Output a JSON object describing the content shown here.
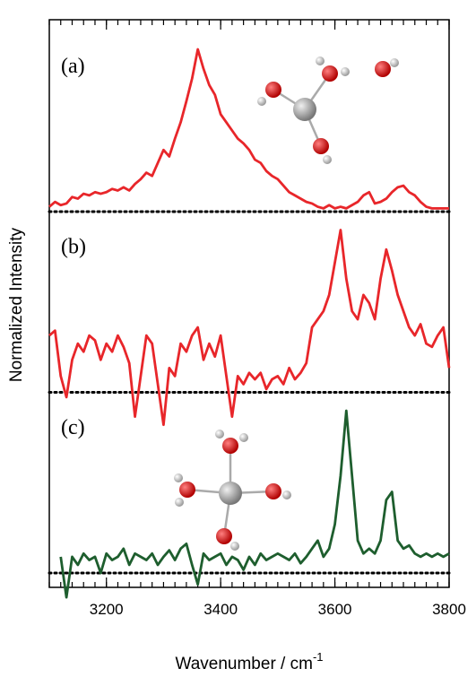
{
  "chart_data": {
    "type": "line",
    "xlabel": "Wavenumber  /  cm",
    "xlabel_sup": "-1",
    "ylabel": "Normalized Intensity",
    "xlim": [
      3100,
      3800
    ],
    "xticks": [
      3200,
      3400,
      3600,
      3800
    ],
    "xminorticks": [
      3100,
      3120,
      3140,
      3160,
      3180,
      3200,
      3220,
      3240,
      3260,
      3280,
      3300,
      3320,
      3340,
      3360,
      3380,
      3400,
      3420,
      3440,
      3460,
      3480,
      3500,
      3520,
      3540,
      3560,
      3580,
      3600,
      3620,
      3640,
      3660,
      3680,
      3700,
      3720,
      3740,
      3760,
      3780,
      3800
    ],
    "x": [
      3100,
      3110,
      3120,
      3130,
      3140,
      3150,
      3160,
      3170,
      3180,
      3190,
      3200,
      3210,
      3220,
      3230,
      3240,
      3250,
      3260,
      3270,
      3280,
      3290,
      3300,
      3310,
      3320,
      3330,
      3340,
      3350,
      3360,
      3370,
      3380,
      3390,
      3400,
      3410,
      3420,
      3430,
      3440,
      3450,
      3460,
      3470,
      3480,
      3490,
      3500,
      3510,
      3520,
      3530,
      3540,
      3550,
      3560,
      3570,
      3580,
      3590,
      3600,
      3610,
      3620,
      3630,
      3640,
      3650,
      3660,
      3670,
      3680,
      3690,
      3700,
      3710,
      3720,
      3730,
      3740,
      3750,
      3760,
      3770,
      3780,
      3790,
      3800
    ],
    "panels": [
      {
        "label": "(a)",
        "ylim": [
          0,
          1
        ],
        "series": [
          {
            "color": "#e8262a",
            "values": [
              0.03,
              0.06,
              0.04,
              0.05,
              0.09,
              0.08,
              0.11,
              0.1,
              0.12,
              0.11,
              0.12,
              0.14,
              0.13,
              0.15,
              0.13,
              0.17,
              0.2,
              0.24,
              0.22,
              0.3,
              0.38,
              0.34,
              0.45,
              0.55,
              0.68,
              0.82,
              1.0,
              0.88,
              0.78,
              0.72,
              0.6,
              0.55,
              0.5,
              0.45,
              0.42,
              0.38,
              0.32,
              0.3,
              0.25,
              0.22,
              0.2,
              0.16,
              0.12,
              0.1,
              0.08,
              0.06,
              0.05,
              0.03,
              0.02,
              0.04,
              0.02,
              0.03,
              0.02,
              0.04,
              0.06,
              0.1,
              0.12,
              0.05,
              0.06,
              0.08,
              0.12,
              0.15,
              0.16,
              0.12,
              0.1,
              0.06,
              0.03,
              0.02,
              0.02,
              0.02,
              0.02
            ]
          }
        ]
      },
      {
        "label": "(b)",
        "ylim": [
          0,
          1
        ],
        "series": [
          {
            "color": "#e8262a",
            "values": [
              0.35,
              0.38,
              0.1,
              -0.03,
              0.2,
              0.3,
              0.25,
              0.35,
              0.32,
              0.2,
              0.3,
              0.25,
              0.35,
              0.28,
              0.18,
              -0.15,
              0.1,
              0.35,
              0.3,
              0.05,
              -0.2,
              0.15,
              0.1,
              0.3,
              0.25,
              0.35,
              0.4,
              0.2,
              0.3,
              0.22,
              0.35,
              0.1,
              -0.15,
              0.1,
              0.05,
              0.12,
              0.08,
              0.12,
              0.02,
              0.08,
              0.1,
              0.05,
              0.15,
              0.08,
              0.12,
              0.18,
              0.4,
              0.45,
              0.5,
              0.6,
              0.8,
              1.0,
              0.7,
              0.5,
              0.45,
              0.6,
              0.55,
              0.45,
              0.7,
              0.88,
              0.75,
              0.6,
              0.5,
              0.4,
              0.35,
              0.42,
              0.3,
              0.28,
              0.35,
              0.4,
              0.15
            ]
          }
        ]
      },
      {
        "label": "(c)",
        "ylim": [
          0,
          1
        ],
        "series": [
          {
            "color": "#1e5e2e",
            "values": [
              null,
              null,
              0.1,
              -0.15,
              0.1,
              0.05,
              0.12,
              0.08,
              0.1,
              0.0,
              0.12,
              0.08,
              0.1,
              0.15,
              0.05,
              0.12,
              0.1,
              0.08,
              0.12,
              0.05,
              0.1,
              0.14,
              0.08,
              0.15,
              0.18,
              0.05,
              -0.07,
              0.12,
              0.08,
              0.1,
              0.12,
              0.05,
              0.1,
              0.08,
              0.02,
              0.1,
              0.05,
              0.12,
              0.08,
              0.1,
              0.12,
              0.1,
              0.08,
              0.12,
              0.06,
              0.1,
              0.15,
              0.2,
              0.1,
              0.15,
              0.3,
              0.6,
              1.0,
              0.6,
              0.2,
              0.12,
              0.15,
              0.12,
              0.2,
              0.45,
              0.5,
              0.2,
              0.15,
              0.17,
              0.12,
              0.1,
              0.12,
              0.1,
              0.12,
              0.1,
              0.12
            ]
          }
        ]
      }
    ]
  }
}
